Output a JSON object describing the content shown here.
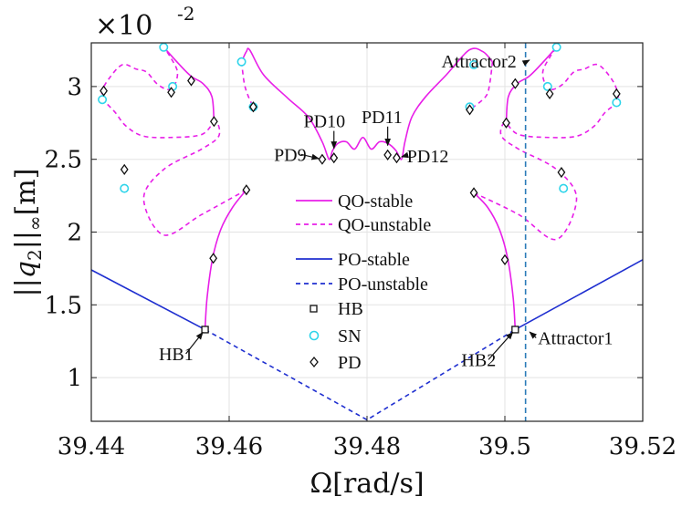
{
  "chart_data": {
    "type": "line",
    "title": "",
    "xlabel": "Ω[rad/s]",
    "ylabel": "||q2||∞[m]",
    "ylabel_parts": {
      "open": "||",
      "var": "q",
      "sub": "2",
      "close": "||",
      "subinf": "∞",
      "unit": "[m]"
    },
    "y_exponent": {
      "base": "×10",
      "power": "-2"
    },
    "xlim": [
      39.44,
      39.52
    ],
    "ylim": [
      0.7,
      3.3
    ],
    "xticks": [
      39.44,
      39.46,
      39.48,
      39.5,
      39.52
    ],
    "xtick_labels": [
      "39.44",
      "39.46",
      "39.48",
      "39.5",
      "39.52"
    ],
    "yticks": [
      1,
      1.5,
      2,
      2.5,
      3
    ],
    "ytick_labels": [
      "1",
      "1.5",
      "2",
      "2.5",
      "3"
    ],
    "grid": true,
    "colors": {
      "qo": "#e81ee8",
      "po": "#1f2fd0",
      "sn": "#2ed4ea",
      "marker": "#111111",
      "vline": "#2b7bb8"
    },
    "legend": {
      "placement": "center",
      "entries": [
        {
          "key": "qo_stable",
          "label": "QO-stable"
        },
        {
          "key": "qo_unstable",
          "label": "QO-unstable"
        },
        {
          "key": "po_stable",
          "label": "PO-stable"
        },
        {
          "key": "po_unstable",
          "label": "PO-unstable"
        },
        {
          "key": "hb",
          "label": "HB"
        },
        {
          "key": "sn",
          "label": "SN"
        },
        {
          "key": "pd",
          "label": "PD"
        }
      ]
    },
    "series": [
      {
        "name": "PO-stable",
        "style": "solid",
        "color": "po",
        "x": [
          39.44,
          39.4565
        ],
        "y": [
          1.74,
          1.33
        ]
      },
      {
        "name": "PO-stable",
        "style": "solid",
        "color": "po",
        "x": [
          39.5015,
          39.52
        ],
        "y": [
          1.33,
          1.81
        ]
      },
      {
        "name": "PO-unstable",
        "style": "dashed",
        "color": "po",
        "x": [
          39.4565,
          39.48,
          39.5015
        ],
        "y": [
          1.33,
          0.71,
          1.33
        ]
      },
      {
        "name": "QO-stable",
        "style": "solid",
        "color": "qo",
        "x": [
          39.4565,
          39.4568,
          39.4576,
          39.4588,
          39.4605,
          39.4625
        ],
        "y": [
          1.33,
          1.55,
          1.82,
          2.02,
          2.17,
          2.29
        ]
      },
      {
        "name": "QO-unstable",
        "style": "dashed",
        "color": "qo",
        "x": [
          39.4625,
          39.456,
          39.4505,
          39.4476,
          39.4505,
          39.456,
          39.4585,
          39.458,
          39.456,
          39.4515,
          39.4475,
          39.445,
          39.4435,
          39.4418,
          39.4416,
          39.4425,
          39.4445,
          39.4465,
          39.448,
          39.4495,
          39.451,
          39.452,
          39.4525,
          39.4515,
          39.4505
        ],
        "y": [
          2.29,
          2.12,
          1.98,
          2.23,
          2.43,
          2.57,
          2.66,
          2.76,
          2.67,
          2.65,
          2.66,
          2.73,
          2.82,
          2.91,
          2.97,
          3.05,
          3.15,
          3.12,
          3.1,
          3.02,
          2.98,
          3.0,
          3.1,
          3.2,
          3.27
        ]
      },
      {
        "name": "QO-stable",
        "style": "solid",
        "color": "qo",
        "x": [
          39.4505,
          39.4528,
          39.4545,
          39.4562,
          39.4575,
          39.4578
        ],
        "y": [
          3.27,
          3.15,
          3.07,
          3.02,
          2.93,
          2.76
        ]
      },
      {
        "name": "QO-stable",
        "style": "solid",
        "color": "qo",
        "x": [
          39.4618,
          39.4625,
          39.463,
          39.465,
          39.4685,
          39.4715,
          39.4735,
          39.4745,
          39.475,
          39.4758,
          39.477,
          39.4782,
          39.4794,
          39.4806,
          39.4818,
          39.483,
          39.4842,
          39.485,
          39.4855,
          39.4865,
          39.4885,
          39.4915,
          39.4948,
          39.4968,
          39.4982
        ],
        "y": [
          3.17,
          3.24,
          3.25,
          3.08,
          2.92,
          2.79,
          2.62,
          2.5,
          2.56,
          2.61,
          2.62,
          2.57,
          2.65,
          2.57,
          2.62,
          2.61,
          2.56,
          2.5,
          2.62,
          2.79,
          2.93,
          3.08,
          3.25,
          3.24,
          3.17
        ]
      },
      {
        "name": "QO-unstable",
        "style": "dashed",
        "color": "qo",
        "x": [
          39.4618,
          39.4622,
          39.4628,
          39.4635
        ],
        "y": [
          3.17,
          3.02,
          2.93,
          2.86
        ]
      },
      {
        "name": "QO-unstable",
        "style": "dashed",
        "color": "qo",
        "x": [
          39.4982,
          39.4978,
          39.4972,
          39.4949
        ],
        "y": [
          3.17,
          3.02,
          2.93,
          2.84
        ]
      },
      {
        "name": "QO-stable",
        "style": "solid",
        "color": "qo",
        "x": [
          39.5015,
          39.5012,
          39.5004,
          39.4992,
          39.4975,
          39.4955
        ],
        "y": [
          1.33,
          1.55,
          1.82,
          2.02,
          2.17,
          2.27
        ]
      },
      {
        "name": "QO-unstable",
        "style": "dashed",
        "color": "qo",
        "x": [
          39.4955,
          39.502,
          39.5075,
          39.5104,
          39.5075,
          39.502,
          39.4995,
          39.5,
          39.502,
          39.5065,
          39.5105,
          39.513,
          39.5145,
          39.5162,
          39.5164,
          39.5155,
          39.5135,
          39.5115,
          39.51,
          39.5085,
          39.507,
          39.506,
          39.5055,
          39.5065,
          39.5075
        ],
        "y": [
          2.27,
          2.12,
          1.95,
          2.23,
          2.43,
          2.57,
          2.66,
          2.75,
          2.67,
          2.65,
          2.66,
          2.73,
          2.82,
          2.89,
          2.95,
          3.05,
          3.15,
          3.12,
          3.1,
          3.02,
          2.98,
          3.0,
          3.1,
          3.2,
          3.27
        ]
      },
      {
        "name": "QO-stable",
        "style": "solid",
        "color": "qo",
        "x": [
          39.5075,
          39.5052,
          39.5035,
          39.5018,
          39.5005,
          39.5002
        ],
        "y": [
          3.27,
          3.15,
          3.07,
          3.02,
          2.93,
          2.75
        ]
      }
    ],
    "vline": {
      "x": 39.503,
      "style": "dashed",
      "color": "vline"
    },
    "hb_points": [
      [
        39.4565,
        1.33
      ],
      [
        39.5015,
        1.33
      ]
    ],
    "sn_points": [
      [
        39.4416,
        2.91
      ],
      [
        39.4448,
        2.3
      ],
      [
        39.4505,
        3.27
      ],
      [
        39.4518,
        3.0
      ],
      [
        39.4618,
        3.17
      ],
      [
        39.4635,
        2.86
      ],
      [
        39.4949,
        2.86
      ],
      [
        39.4955,
        3.15
      ],
      [
        39.5062,
        3.0
      ],
      [
        39.5075,
        3.27
      ],
      [
        39.5085,
        2.3
      ],
      [
        39.5162,
        2.89
      ]
    ],
    "pd_points": [
      [
        39.4418,
        2.97
      ],
      [
        39.4448,
        2.43
      ],
      [
        39.4516,
        2.96
      ],
      [
        39.4545,
        3.04
      ],
      [
        39.4578,
        2.76
      ],
      [
        39.4577,
        1.82
      ],
      [
        39.4625,
        2.29
      ],
      [
        39.4635,
        2.86
      ],
      [
        39.4735,
        2.5
      ],
      [
        39.4752,
        2.51
      ],
      [
        39.483,
        2.53
      ],
      [
        39.4843,
        2.51
      ],
      [
        39.4949,
        2.84
      ],
      [
        39.4955,
        2.27
      ],
      [
        39.5,
        1.81
      ],
      [
        39.5002,
        2.75
      ],
      [
        39.5015,
        3.02
      ],
      [
        39.5065,
        2.95
      ],
      [
        39.5082,
        2.41
      ],
      [
        39.5162,
        2.95
      ]
    ],
    "annotations": [
      {
        "text": "HB1",
        "x": 39.4498,
        "y": 1.12,
        "tx": 39.4565,
        "ty": 1.33,
        "anchor": "start"
      },
      {
        "text": "HB2",
        "x": 39.4937,
        "y": 1.08,
        "tx": 39.5015,
        "ty": 1.33,
        "anchor": "start"
      },
      {
        "text": "Attractor1",
        "x": 39.5048,
        "y": 1.23,
        "tx": 39.5032,
        "ty": 1.33,
        "anchor": "start"
      },
      {
        "text": "Attractor2",
        "x": 39.4908,
        "y": 3.13,
        "tx": 39.5031,
        "ty": 3.17,
        "anchor": "start"
      },
      {
        "text": "PD9",
        "x": 39.4665,
        "y": 2.49,
        "tx": 39.4735,
        "ty": 2.5,
        "anchor": "start"
      },
      {
        "text": "PD10",
        "x": 39.4708,
        "y": 2.72,
        "tx": 39.4752,
        "ty": 2.55,
        "anchor": "start"
      },
      {
        "text": "PD11",
        "x": 39.4792,
        "y": 2.75,
        "tx": 39.483,
        "ty": 2.57,
        "anchor": "start"
      },
      {
        "text": "PD12",
        "x": 39.4858,
        "y": 2.48,
        "tx": 39.4845,
        "ty": 2.51,
        "anchor": "start"
      }
    ]
  }
}
